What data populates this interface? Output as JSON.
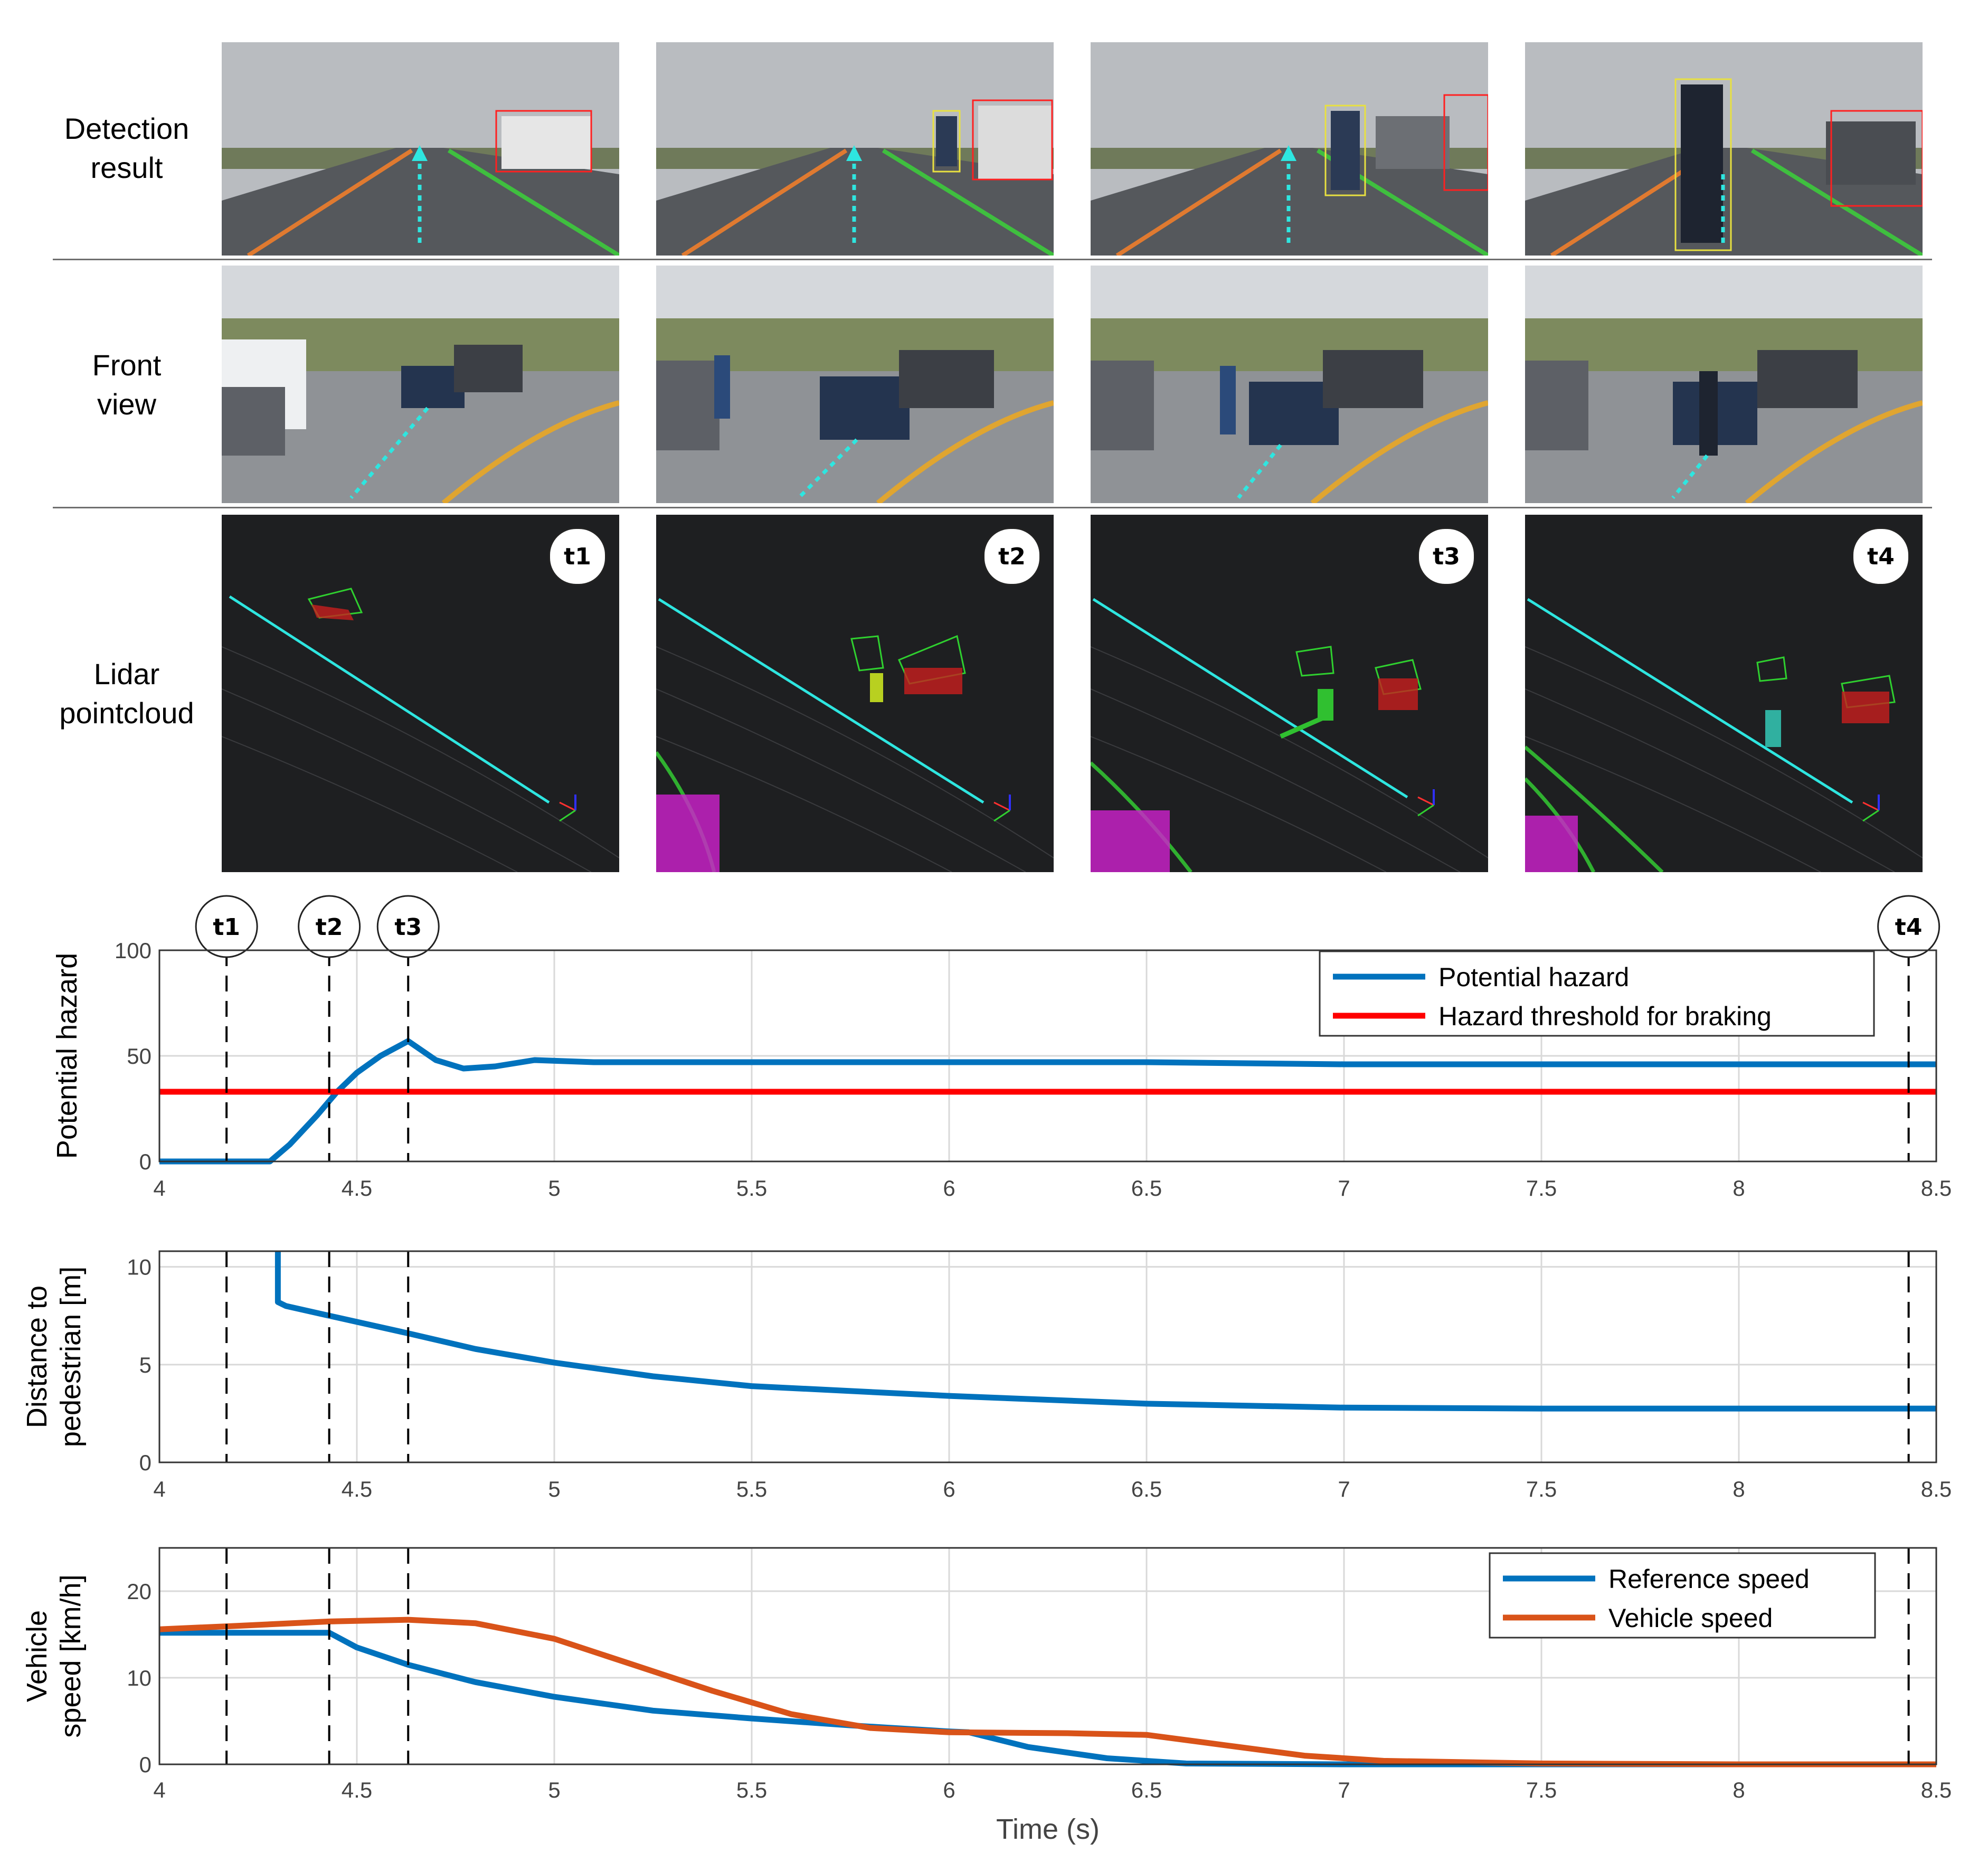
{
  "rows": [
    {
      "label_lines": [
        "Detection",
        "result"
      ]
    },
    {
      "label_lines": [
        "Front",
        "view"
      ]
    },
    {
      "label_lines": [
        "Lidar",
        "pointcloud"
      ]
    }
  ],
  "badges": [
    "t1",
    "t2",
    "t3",
    "t4"
  ],
  "colors": {
    "blue": "#0072BD",
    "red": "#FF0000",
    "orange": "#D95319",
    "cyan": "#2EE6E0",
    "grid": "#D9D9D9"
  },
  "chart_data": [
    {
      "type": "line",
      "ylabel": "Potential hazard",
      "xlim": [
        4,
        8.5
      ],
      "ylim": [
        0,
        100
      ],
      "xticks": [
        "4",
        "4.5",
        "5",
        "5.5",
        "6",
        "6.5",
        "7",
        "7.5",
        "8",
        "8.5"
      ],
      "yticks": [
        "0",
        "50",
        "100"
      ],
      "grid": true,
      "legend": "top-right",
      "markers": [
        {
          "label": "t1",
          "x": 4.17
        },
        {
          "label": "t2",
          "x": 4.43
        },
        {
          "label": "t3",
          "x": 4.63
        },
        {
          "label": "t4",
          "x": 8.43
        }
      ],
      "series": [
        {
          "name": "Potential hazard",
          "color": "#0072BD",
          "x": [
            4.0,
            4.28,
            4.33,
            4.4,
            4.45,
            4.5,
            4.56,
            4.63,
            4.7,
            4.77,
            4.85,
            4.95,
            5.1,
            5.5,
            6.0,
            6.5,
            7.0,
            7.5,
            8.0,
            8.5
          ],
          "y": [
            0,
            0,
            8,
            22,
            33,
            42,
            50,
            57,
            48,
            44,
            45,
            48,
            47,
            47,
            47,
            47,
            46,
            46,
            46,
            46
          ]
        },
        {
          "name": "Hazard threshold for braking",
          "color": "#FF0000",
          "x": [
            4.0,
            8.5
          ],
          "y": [
            33,
            33
          ]
        }
      ]
    },
    {
      "type": "line",
      "ylabel": "Distance to pedestrian [m]",
      "xlim": [
        4,
        8.5
      ],
      "ylim": [
        0,
        10.8
      ],
      "xticks": [
        "4",
        "4.5",
        "5",
        "5.5",
        "6",
        "6.5",
        "7",
        "7.5",
        "8",
        "8.5"
      ],
      "yticks": [
        "0",
        "5",
        "10"
      ],
      "grid": true,
      "markers": [
        {
          "label": "t1",
          "x": 4.17
        },
        {
          "label": "t2",
          "x": 4.43
        },
        {
          "label": "t3",
          "x": 4.63
        },
        {
          "label": "t4",
          "x": 8.43
        }
      ],
      "series": [
        {
          "name": "",
          "color": "#0072BD",
          "x": [
            4.3,
            4.3,
            4.32,
            4.43,
            4.63,
            4.8,
            5.0,
            5.25,
            5.5,
            6.0,
            6.5,
            7.0,
            7.5,
            8.0,
            8.5
          ],
          "y": [
            10.8,
            8.2,
            8.0,
            7.5,
            6.6,
            5.8,
            5.1,
            4.4,
            3.9,
            3.4,
            3.0,
            2.8,
            2.75,
            2.75,
            2.75
          ]
        }
      ]
    },
    {
      "type": "line",
      "ylabel": "Vehicle speed [km/h]",
      "xlabel": "Time (s)",
      "xlim": [
        4,
        8.5
      ],
      "ylim": [
        0,
        25
      ],
      "xticks": [
        "4",
        "4.5",
        "5",
        "5.5",
        "6",
        "6.5",
        "7",
        "7.5",
        "8",
        "8.5"
      ],
      "yticks": [
        "0",
        "10",
        "20"
      ],
      "grid": true,
      "legend": "top-right",
      "markers": [
        {
          "label": "t1",
          "x": 4.17
        },
        {
          "label": "t2",
          "x": 4.43
        },
        {
          "label": "t3",
          "x": 4.63
        },
        {
          "label": "t4",
          "x": 8.43
        }
      ],
      "series": [
        {
          "name": "Reference speed",
          "color": "#0072BD",
          "x": [
            4.0,
            4.43,
            4.5,
            4.63,
            4.8,
            5.0,
            5.25,
            5.5,
            5.75,
            6.0,
            6.05,
            6.2,
            6.4,
            6.6,
            7.0,
            7.5,
            8.0,
            8.5
          ],
          "y": [
            15.2,
            15.2,
            13.5,
            11.5,
            9.5,
            7.8,
            6.2,
            5.3,
            4.5,
            3.8,
            3.7,
            2.0,
            0.7,
            0.1,
            0.0,
            0.0,
            0.0,
            0.0
          ]
        },
        {
          "name": "Vehicle speed",
          "color": "#D95319",
          "x": [
            4.0,
            4.2,
            4.43,
            4.63,
            4.8,
            5.0,
            5.2,
            5.4,
            5.6,
            5.8,
            6.0,
            6.3,
            6.5,
            6.7,
            6.9,
            7.1,
            7.5,
            8.0,
            8.5
          ],
          "y": [
            15.6,
            16.0,
            16.5,
            16.7,
            16.3,
            14.5,
            11.5,
            8.5,
            5.8,
            4.2,
            3.7,
            3.6,
            3.4,
            2.2,
            1.0,
            0.4,
            0.1,
            0.0,
            0.0
          ]
        }
      ]
    }
  ]
}
